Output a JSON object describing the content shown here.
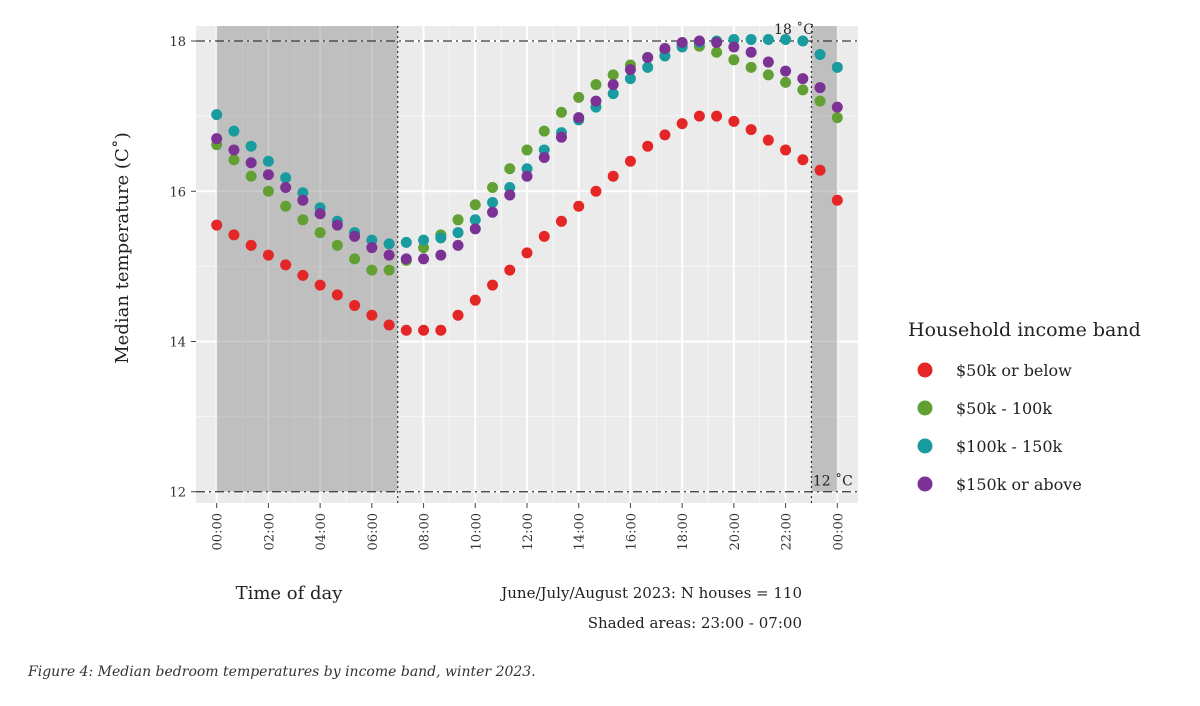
{
  "chart_data": {
    "type": "scatter",
    "title": "",
    "ylabel": "Median temperature (C˚)",
    "xlabel": "Time of day",
    "ylim": [
      11.85,
      18.2
    ],
    "xlim": [
      -0.8,
      24.8
    ],
    "y_ticks": [
      12,
      14,
      16,
      18
    ],
    "x_ticks": [
      "00:00",
      "02:00",
      "04:00",
      "06:00",
      "08:00",
      "10:00",
      "12:00",
      "14:00",
      "16:00",
      "18:00",
      "20:00",
      "22:00",
      "00:00"
    ],
    "x_tick_values": [
      0,
      2,
      4,
      6,
      8,
      10,
      12,
      14,
      16,
      18,
      20,
      22,
      24
    ],
    "grid": true,
    "legend_position": "right",
    "legend_title": "Household income band",
    "reference_lines": [
      {
        "y": 18,
        "label": "18 ˚C"
      },
      {
        "y": 12,
        "label": "12 ˚C"
      }
    ],
    "shaded_periods": [
      [
        -0.8,
        7
      ],
      [
        23,
        24.8
      ]
    ],
    "vertical_markers": [
      7,
      23
    ],
    "annotations": [
      "June/July/August 2023: N houses = 110",
      "Shaded areas: 23:00 - 07:00"
    ],
    "x": [
      0,
      0.667,
      1.333,
      2,
      2.667,
      3.333,
      4,
      4.667,
      5.333,
      6,
      6.667,
      7.333,
      8,
      8.667,
      9.333,
      10,
      10.667,
      11.333,
      12,
      12.667,
      13.333,
      14,
      14.667,
      15.333,
      16,
      16.667,
      17.333,
      18,
      18.667,
      19.333,
      20,
      20.667,
      21.333,
      22,
      22.667,
      23.333,
      24
    ],
    "series": [
      {
        "name": "$50k or below",
        "color": "#e52627",
        "values": [
          15.55,
          15.42,
          15.28,
          15.15,
          15.02,
          14.88,
          14.75,
          14.62,
          14.48,
          14.35,
          14.22,
          14.15,
          14.15,
          14.15,
          14.35,
          14.55,
          14.75,
          14.95,
          15.18,
          15.4,
          15.6,
          15.8,
          16.0,
          16.2,
          16.4,
          16.6,
          16.75,
          16.9,
          17.0,
          17.0,
          16.93,
          16.82,
          16.68,
          16.55,
          16.42,
          16.28,
          15.88
        ]
      },
      {
        "name": "$50k - 100k",
        "color": "#62a033",
        "values": [
          16.62,
          16.42,
          16.2,
          16.0,
          15.8,
          15.62,
          15.45,
          15.28,
          15.1,
          14.95,
          14.95,
          15.08,
          15.25,
          15.42,
          15.62,
          15.82,
          16.05,
          16.3,
          16.55,
          16.8,
          17.05,
          17.25,
          17.42,
          17.55,
          17.68,
          17.78,
          17.88,
          17.95,
          17.93,
          17.85,
          17.75,
          17.65,
          17.55,
          17.45,
          17.35,
          17.2,
          16.98
        ]
      },
      {
        "name": "$100k - 150k",
        "color": "#1a9ba0",
        "values": [
          17.02,
          16.8,
          16.6,
          16.4,
          16.18,
          15.98,
          15.78,
          15.6,
          15.45,
          15.35,
          15.3,
          15.32,
          15.35,
          15.38,
          15.45,
          15.62,
          15.85,
          16.05,
          16.3,
          16.55,
          16.78,
          16.95,
          17.12,
          17.3,
          17.5,
          17.65,
          17.8,
          17.92,
          17.98,
          18.0,
          18.02,
          18.02,
          18.02,
          18.02,
          18.0,
          17.82,
          17.65
        ]
      },
      {
        "name": "$150k or above",
        "color": "#7b3294",
        "values": [
          16.7,
          16.55,
          16.38,
          16.22,
          16.05,
          15.88,
          15.7,
          15.55,
          15.4,
          15.25,
          15.15,
          15.1,
          15.1,
          15.15,
          15.28,
          15.5,
          15.72,
          15.95,
          16.2,
          16.45,
          16.72,
          16.98,
          17.2,
          17.42,
          17.62,
          17.78,
          17.9,
          17.98,
          18.0,
          17.98,
          17.92,
          17.85,
          17.72,
          17.6,
          17.5,
          17.38,
          17.12
        ]
      }
    ]
  },
  "notes": {
    "period": "June/July/August 2023: N houses = 110",
    "shaded": "Shaded areas: 23:00 - 07:00"
  },
  "figure_caption": "Figure 4: Median bedroom temperatures by income band, winter 2023."
}
